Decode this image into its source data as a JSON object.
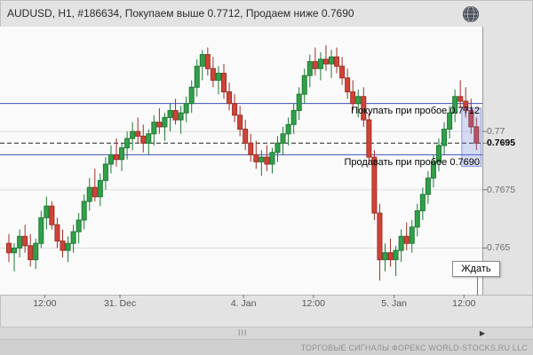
{
  "header": {
    "title": "AUDUSD, H1, #186634, Покупаем выше 0.7712, Продаем ниже 0.7690"
  },
  "chart_data": {
    "type": "candlestick",
    "symbol": "AUDUSD",
    "timeframe": "H1",
    "signal_id": "#186634",
    "annotations": [
      {
        "text": "Покупать при пробое 0.7712",
        "price": 0.7712,
        "kind": "buy"
      },
      {
        "text": "Продавать при пробое 0.7690",
        "price": 0.769,
        "kind": "sell"
      }
    ],
    "levels": [
      {
        "price": 0.7712,
        "style": "solid",
        "color": "#3f51c1",
        "label": "buy-breakout"
      },
      {
        "price": 0.769,
        "style": "solid",
        "color": "#3f51c1",
        "label": "sell-breakout"
      },
      {
        "price": 0.7695,
        "style": "dashed",
        "color": "#222222",
        "label": "current-price"
      }
    ],
    "y_axis": {
      "range": [
        0.763,
        0.7745
      ],
      "gridlines": [
        0.77,
        0.7675,
        0.765
      ],
      "labels": [
        {
          "price": 0.77,
          "text": "0.77",
          "bold": false
        },
        {
          "price": 0.7695,
          "text": "0.7695",
          "bold": true
        },
        {
          "price": 0.7675,
          "text": "0.7675",
          "bold": false
        },
        {
          "price": 0.765,
          "text": "0.765",
          "bold": false
        }
      ]
    },
    "x_axis": {
      "labels": [
        {
          "text": "12:00",
          "candle": 7
        },
        {
          "text": "31. Dec",
          "candle": 21
        },
        {
          "text": "4. Jan",
          "candle": 44
        },
        {
          "text": "12:00",
          "candle": 57
        },
        {
          "text": "5. Jan",
          "candle": 72
        },
        {
          "text": "12:00",
          "candle": 85
        }
      ]
    },
    "wait_flag": {
      "text": "Ждать"
    },
    "selection": {
      "from_candle": 84.6,
      "to_candle": 88.2,
      "price_top": 0.771,
      "price_bottom": 0.7685
    },
    "colors": {
      "up": "#31a04a",
      "up_border": "#1e7a33",
      "down": "#cf4438",
      "down_border": "#9e2f26"
    },
    "candles": [
      [
        0.7652,
        0.7656,
        0.7644,
        0.7648
      ],
      [
        0.7648,
        0.7652,
        0.764,
        0.765
      ],
      [
        0.765,
        0.7658,
        0.7646,
        0.7655
      ],
      [
        0.7655,
        0.766,
        0.7648,
        0.7651
      ],
      [
        0.7651,
        0.7656,
        0.7642,
        0.7645
      ],
      [
        0.7645,
        0.7654,
        0.7641,
        0.7652
      ],
      [
        0.7652,
        0.7666,
        0.765,
        0.7663
      ],
      [
        0.7663,
        0.7672,
        0.7658,
        0.7668
      ],
      [
        0.7668,
        0.767,
        0.7658,
        0.766
      ],
      [
        0.766,
        0.7663,
        0.765,
        0.7653
      ],
      [
        0.7653,
        0.7658,
        0.7646,
        0.7649
      ],
      [
        0.7649,
        0.7655,
        0.7644,
        0.7652
      ],
      [
        0.7652,
        0.766,
        0.7648,
        0.7657
      ],
      [
        0.7657,
        0.7665,
        0.7652,
        0.7662
      ],
      [
        0.7662,
        0.7673,
        0.7658,
        0.767
      ],
      [
        0.767,
        0.768,
        0.7666,
        0.7676
      ],
      [
        0.7676,
        0.7684,
        0.767,
        0.7672
      ],
      [
        0.7672,
        0.7682,
        0.7668,
        0.7679
      ],
      [
        0.7679,
        0.7689,
        0.7675,
        0.7686
      ],
      [
        0.7686,
        0.7694,
        0.7682,
        0.769
      ],
      [
        0.769,
        0.7697,
        0.7685,
        0.7688
      ],
      [
        0.7688,
        0.7695,
        0.7683,
        0.7693
      ],
      [
        0.7693,
        0.77,
        0.7688,
        0.7697
      ],
      [
        0.7697,
        0.7704,
        0.7692,
        0.77
      ],
      [
        0.77,
        0.7706,
        0.7695,
        0.7698
      ],
      [
        0.7698,
        0.7703,
        0.7691,
        0.7695
      ],
      [
        0.7695,
        0.7701,
        0.769,
        0.7699
      ],
      [
        0.7699,
        0.7707,
        0.7694,
        0.7704
      ],
      [
        0.7704,
        0.771,
        0.7699,
        0.7702
      ],
      [
        0.7702,
        0.7708,
        0.7696,
        0.7706
      ],
      [
        0.7706,
        0.7712,
        0.77,
        0.7709
      ],
      [
        0.7709,
        0.7714,
        0.7703,
        0.7705
      ],
      [
        0.7705,
        0.7711,
        0.7699,
        0.7708
      ],
      [
        0.7708,
        0.7715,
        0.7704,
        0.7712
      ],
      [
        0.7712,
        0.7722,
        0.7708,
        0.7719
      ],
      [
        0.7719,
        0.7731,
        0.7715,
        0.7728
      ],
      [
        0.7728,
        0.7735,
        0.7722,
        0.7733
      ],
      [
        0.7733,
        0.7736,
        0.7724,
        0.7727
      ],
      [
        0.7727,
        0.7732,
        0.7719,
        0.7722
      ],
      [
        0.7722,
        0.7728,
        0.7716,
        0.7725
      ],
      [
        0.7725,
        0.7729,
        0.7714,
        0.7717
      ],
      [
        0.7717,
        0.7721,
        0.7709,
        0.7712
      ],
      [
        0.7712,
        0.7716,
        0.7704,
        0.7707
      ],
      [
        0.7707,
        0.7711,
        0.7698,
        0.7701
      ],
      [
        0.7701,
        0.7705,
        0.7692,
        0.7695
      ],
      [
        0.7695,
        0.7699,
        0.7687,
        0.769
      ],
      [
        0.769,
        0.7696,
        0.7684,
        0.7687
      ],
      [
        0.7687,
        0.7692,
        0.7681,
        0.7689
      ],
      [
        0.7689,
        0.7694,
        0.7683,
        0.7686
      ],
      [
        0.7686,
        0.7693,
        0.7682,
        0.7691
      ],
      [
        0.7691,
        0.7698,
        0.7687,
        0.7695
      ],
      [
        0.7695,
        0.7702,
        0.769,
        0.7699
      ],
      [
        0.7699,
        0.7706,
        0.7694,
        0.7703
      ],
      [
        0.7703,
        0.7712,
        0.7699,
        0.7709
      ],
      [
        0.7709,
        0.7719,
        0.7705,
        0.7716
      ],
      [
        0.7716,
        0.7727,
        0.7712,
        0.7724
      ],
      [
        0.7724,
        0.7733,
        0.7719,
        0.773
      ],
      [
        0.773,
        0.7736,
        0.7724,
        0.7727
      ],
      [
        0.7727,
        0.7734,
        0.7722,
        0.7731
      ],
      [
        0.7731,
        0.7737,
        0.7726,
        0.7729
      ],
      [
        0.7729,
        0.7735,
        0.7723,
        0.7732
      ],
      [
        0.7732,
        0.7736,
        0.7725,
        0.7728
      ],
      [
        0.7728,
        0.7732,
        0.772,
        0.7723
      ],
      [
        0.7723,
        0.7727,
        0.7714,
        0.7717
      ],
      [
        0.7717,
        0.7722,
        0.7709,
        0.7712
      ],
      [
        0.7712,
        0.7718,
        0.7706,
        0.7715
      ],
      [
        0.7715,
        0.7719,
        0.7702,
        0.7705
      ],
      [
        0.7705,
        0.7708,
        0.7686,
        0.7689
      ],
      [
        0.7689,
        0.7692,
        0.7662,
        0.7665
      ],
      [
        0.7665,
        0.7669,
        0.7636,
        0.7645
      ],
      [
        0.7645,
        0.7652,
        0.764,
        0.7648
      ],
      [
        0.7648,
        0.7654,
        0.7642,
        0.7645
      ],
      [
        0.7645,
        0.7651,
        0.7638,
        0.7649
      ],
      [
        0.7649,
        0.7658,
        0.7644,
        0.7655
      ],
      [
        0.7655,
        0.7661,
        0.7649,
        0.7652
      ],
      [
        0.7652,
        0.7662,
        0.7648,
        0.7659
      ],
      [
        0.7659,
        0.7669,
        0.7655,
        0.7666
      ],
      [
        0.7666,
        0.7676,
        0.7662,
        0.7673
      ],
      [
        0.7673,
        0.7683,
        0.7669,
        0.768
      ],
      [
        0.768,
        0.769,
        0.7676,
        0.7687
      ],
      [
        0.7687,
        0.7697,
        0.7683,
        0.7694
      ],
      [
        0.7694,
        0.7704,
        0.769,
        0.7701
      ],
      [
        0.7701,
        0.7711,
        0.7697,
        0.7708
      ],
      [
        0.7708,
        0.7718,
        0.7704,
        0.7715
      ],
      [
        0.7715,
        0.7722,
        0.771,
        0.7713
      ],
      [
        0.7713,
        0.7719,
        0.7706,
        0.7709
      ],
      [
        0.7709,
        0.7714,
        0.7699,
        0.7702
      ],
      [
        0.7702,
        0.7706,
        0.7692,
        0.7695
      ]
    ]
  },
  "scrollbar": {
    "grip": "III",
    "right_arrow": "▶"
  },
  "status_bar": {
    "text": "ТОРГОВЫЕ СИГНАЛЫ ФОРЕКС WORLD-STOCKS.RU LLC"
  }
}
